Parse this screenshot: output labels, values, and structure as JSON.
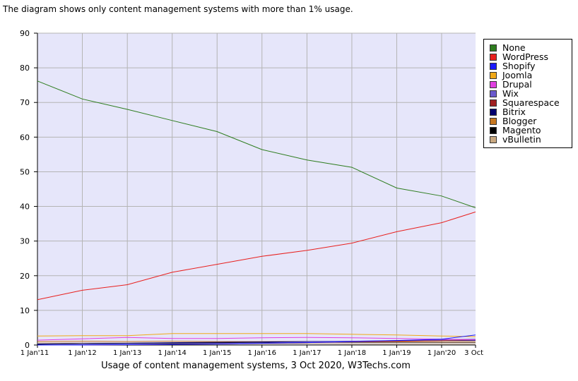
{
  "intro_text": "The diagram shows only content management systems with more than 1% usage.",
  "caption": "Usage of content management systems, 3 Oct 2020, W3Techs.com",
  "chart_data": {
    "type": "line",
    "title": "",
    "xlabel": "",
    "ylabel": "",
    "ylim": [
      0,
      90
    ],
    "yticks": [
      0,
      10,
      20,
      30,
      40,
      50,
      60,
      70,
      80,
      90
    ],
    "grid": true,
    "legend_position": "right",
    "background": "#e6e6fa",
    "x_tick_labels": [
      "1 Jan'11",
      "1 Jan'12",
      "1 Jan'13",
      "1 Jan'14",
      "1 Jan'15",
      "1 Jan'16",
      "1 Jan'17",
      "1 Jan'18",
      "1 Jan'19",
      "1 Jan'20",
      "3 Oct"
    ],
    "x_dates": [
      "2011-01-01",
      "2012-01-01",
      "2013-01-01",
      "2014-01-01",
      "2015-01-01",
      "2016-01-01",
      "2017-01-01",
      "2018-01-01",
      "2019-01-01",
      "2020-01-01",
      "2020-10-03"
    ],
    "series": [
      {
        "name": "None",
        "color": "#2e7d1f",
        "values": [
          76.2,
          71.0,
          68.0,
          64.8,
          61.6,
          56.4,
          53.4,
          51.3,
          45.3,
          43.0,
          39.6
        ]
      },
      {
        "name": "WordPress",
        "color": "#e8201e",
        "values": [
          13.1,
          15.8,
          17.4,
          21.0,
          23.3,
          25.6,
          27.3,
          29.4,
          32.7,
          35.3,
          38.4
        ]
      },
      {
        "name": "Shopify",
        "color": "#1a1aff",
        "values": [
          0.0,
          0.0,
          0.1,
          0.2,
          0.3,
          0.5,
          0.7,
          1.0,
          1.3,
          1.7,
          2.9
        ]
      },
      {
        "name": "Joomla",
        "color": "#f0a818",
        "values": [
          2.6,
          2.7,
          2.7,
          3.3,
          3.3,
          3.3,
          3.3,
          3.1,
          2.9,
          2.6,
          2.4
        ]
      },
      {
        "name": "Drupal",
        "color": "#e040e0",
        "values": [
          1.4,
          1.8,
          2.2,
          1.9,
          1.9,
          2.1,
          2.2,
          2.1,
          1.9,
          1.7,
          1.5
        ]
      },
      {
        "name": "Wix",
        "color": "#6a5acd",
        "values": [
          0.0,
          0.1,
          0.2,
          0.3,
          0.4,
          0.6,
          0.9,
          1.1,
          1.3,
          1.5,
          1.7
        ]
      },
      {
        "name": "Squarespace",
        "color": "#a02020",
        "values": [
          0.0,
          0.0,
          0.1,
          0.2,
          0.3,
          0.5,
          0.7,
          0.9,
          1.1,
          1.3,
          1.5
        ]
      },
      {
        "name": "Bitrix",
        "color": "#00006e",
        "values": [
          0.3,
          0.4,
          0.5,
          0.7,
          0.8,
          0.9,
          1.0,
          1.1,
          1.2,
          1.3,
          1.3
        ]
      },
      {
        "name": "Blogger",
        "color": "#c87820",
        "values": [
          1.0,
          1.1,
          1.0,
          1.1,
          1.0,
          1.0,
          1.0,
          0.9,
          0.9,
          0.9,
          0.9
        ]
      },
      {
        "name": "Magento",
        "color": "#000000",
        "values": [
          0.2,
          0.4,
          0.5,
          0.6,
          0.7,
          0.8,
          0.8,
          0.8,
          0.8,
          0.8,
          0.8
        ]
      },
      {
        "name": "vBulletin",
        "color": "#c8a880",
        "values": [
          0.6,
          0.6,
          0.6,
          0.5,
          0.5,
          0.4,
          0.4,
          0.3,
          0.3,
          0.3,
          0.3
        ]
      }
    ]
  }
}
